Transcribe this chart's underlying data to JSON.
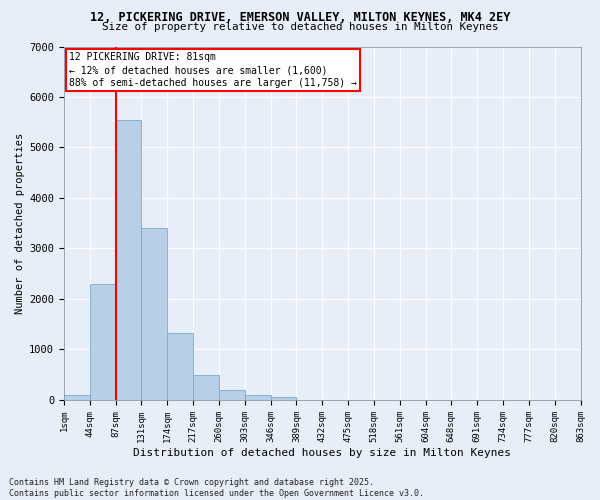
{
  "title_line1": "12, PICKERING DRIVE, EMERSON VALLEY, MILTON KEYNES, MK4 2EY",
  "title_line2": "Size of property relative to detached houses in Milton Keynes",
  "xlabel": "Distribution of detached houses by size in Milton Keynes",
  "ylabel": "Number of detached properties",
  "bar_values": [
    100,
    2300,
    5550,
    3400,
    1320,
    490,
    190,
    90,
    60,
    0,
    0,
    0,
    0,
    0,
    0,
    0,
    0,
    0,
    0,
    0
  ],
  "bar_labels": [
    "1sqm",
    "44sqm",
    "87sqm",
    "131sqm",
    "174sqm",
    "217sqm",
    "260sqm",
    "303sqm",
    "346sqm",
    "389sqm",
    "432sqm",
    "475sqm",
    "518sqm",
    "561sqm",
    "604sqm",
    "648sqm",
    "691sqm",
    "734sqm",
    "777sqm",
    "820sqm",
    "863sqm"
  ],
  "bar_color": "#b8cfe8",
  "bar_edge_color": "#7aaad0",
  "vline_color": "red",
  "ylim": [
    0,
    7000
  ],
  "yticks": [
    0,
    1000,
    2000,
    3000,
    4000,
    5000,
    6000,
    7000
  ],
  "annotation_text": "12 PICKERING DRIVE: 81sqm\n← 12% of detached houses are smaller (1,600)\n88% of semi-detached houses are larger (11,758) →",
  "footnote": "Contains HM Land Registry data © Crown copyright and database right 2025.\nContains public sector information licensed under the Open Government Licence v3.0.",
  "bg_color": "#e8eef8",
  "grid_color": "#ffffff"
}
